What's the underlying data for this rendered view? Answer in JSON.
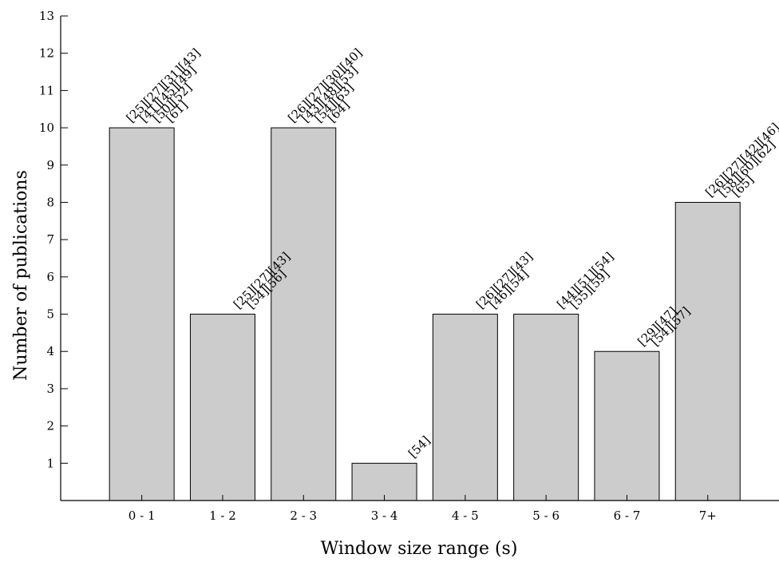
{
  "chart_data": {
    "type": "bar",
    "categories": [
      "0 - 1",
      "1 - 2",
      "2 - 3",
      "3 - 4",
      "4 - 5",
      "5 - 6",
      "6 - 7",
      "7+"
    ],
    "values": [
      10,
      5,
      10,
      1,
      5,
      5,
      4,
      8
    ],
    "bar_labels": [
      [
        "[25][27][31][43]",
        "[41][45][49]",
        "[50][52]",
        "[61]"
      ],
      [
        "[25][27][43]",
        "[54][56]"
      ],
      [
        "[26][27][30][40]",
        "[43][48][53]",
        "[54][63]",
        "[64]"
      ],
      [
        "[54]"
      ],
      [
        "[26][27][43]",
        "[46][54]"
      ],
      [
        "[44][51][54]",
        "[55][59]"
      ],
      [
        "[29][47]",
        "[54][57]"
      ],
      [
        "[26][27][42][46]",
        "[58][60][62]",
        "[65]"
      ]
    ],
    "xlabel": "Window size range (s)",
    "ylabel": "Number of publications",
    "ylim": [
      0,
      13
    ],
    "yticks": [
      1,
      2,
      3,
      4,
      5,
      6,
      7,
      8,
      9,
      10,
      11,
      12,
      13
    ],
    "bar_color": "#cccccc",
    "grid": false,
    "legend": "none"
  }
}
